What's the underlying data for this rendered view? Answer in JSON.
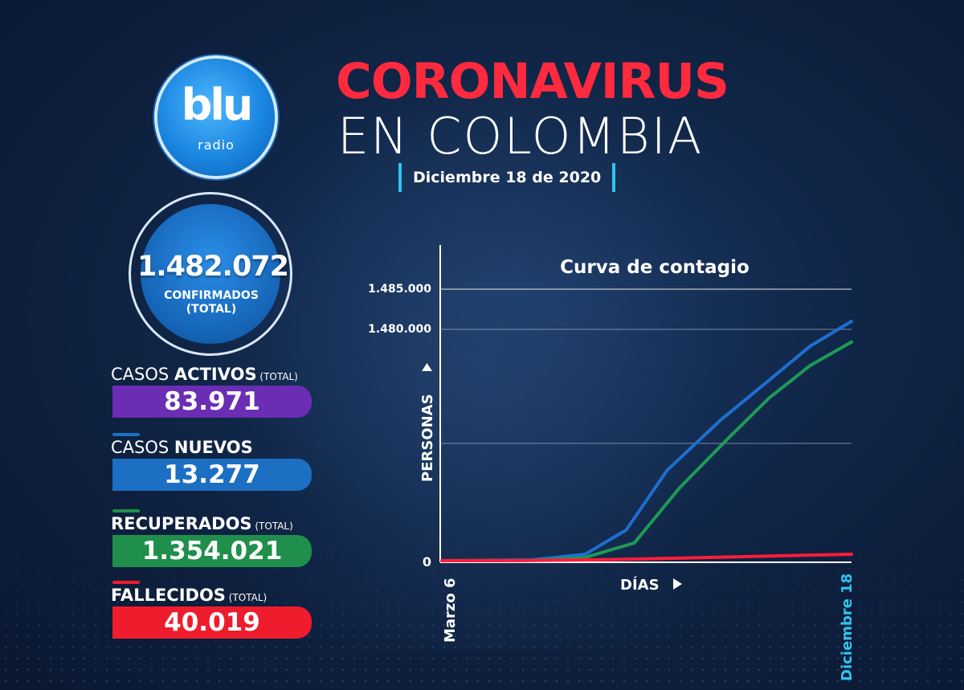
{
  "logo": {
    "word": "blu",
    "sub": "radio"
  },
  "title": {
    "line1": "CORONAVIRUS",
    "line2": "EN COLOMBIA",
    "date": "Diciembre 18 de 2020"
  },
  "confirmed": {
    "value": "1.482.072",
    "label_line1": "CONFIRMADOS",
    "label_line2": "(TOTAL)"
  },
  "stats": [
    {
      "pre": "CASOS ",
      "bold": "ACTIVOS",
      "suffix": " (TOTAL)",
      "value": "83.971",
      "color": "#6a2db4"
    },
    {
      "pre": "CASOS ",
      "bold": "NUEVOS",
      "suffix": "",
      "value": "13.277",
      "color": "#1c6fc2"
    },
    {
      "pre": "",
      "bold": "RECUPERADOS",
      "suffix": " (TOTAL)",
      "value": "1.354.021",
      "color": "#1f8f4b"
    },
    {
      "pre": "",
      "bold": "FALLECIDOS",
      "suffix": " (TOTAL)",
      "value": "40.019",
      "color": "#ef1c2d"
    }
  ],
  "chart_data": {
    "type": "line",
    "title": "Curva de contagio",
    "xlabel": "DÍAS",
    "ylabel": "PERSONAS",
    "x_start_label": "Marzo 6",
    "x_end_label": "Diciembre 18",
    "y_tick_labels": [
      "0",
      "1.480.000",
      "1.485.000"
    ],
    "grid": true,
    "series": [
      {
        "color": "#1d6fd0",
        "x": [
          0,
          0.22,
          0.35,
          0.45,
          0.55,
          0.68,
          0.8,
          0.9,
          1.0
        ],
        "y": [
          0,
          5000,
          40000,
          190000,
          560000,
          870000,
          1120000,
          1330000,
          1482072
        ]
      },
      {
        "color": "#1f9a55",
        "x": [
          0,
          0.22,
          0.35,
          0.47,
          0.58,
          0.7,
          0.8,
          0.9,
          1.0
        ],
        "y": [
          0,
          2000,
          20000,
          110000,
          450000,
          760000,
          1010000,
          1210000,
          1354021
        ]
      },
      {
        "color": "#ff1d3a",
        "x": [
          0,
          0.2,
          0.4,
          0.6,
          0.8,
          1.0
        ],
        "y": [
          0,
          500,
          6000,
          17000,
          29000,
          40019
        ]
      }
    ]
  }
}
